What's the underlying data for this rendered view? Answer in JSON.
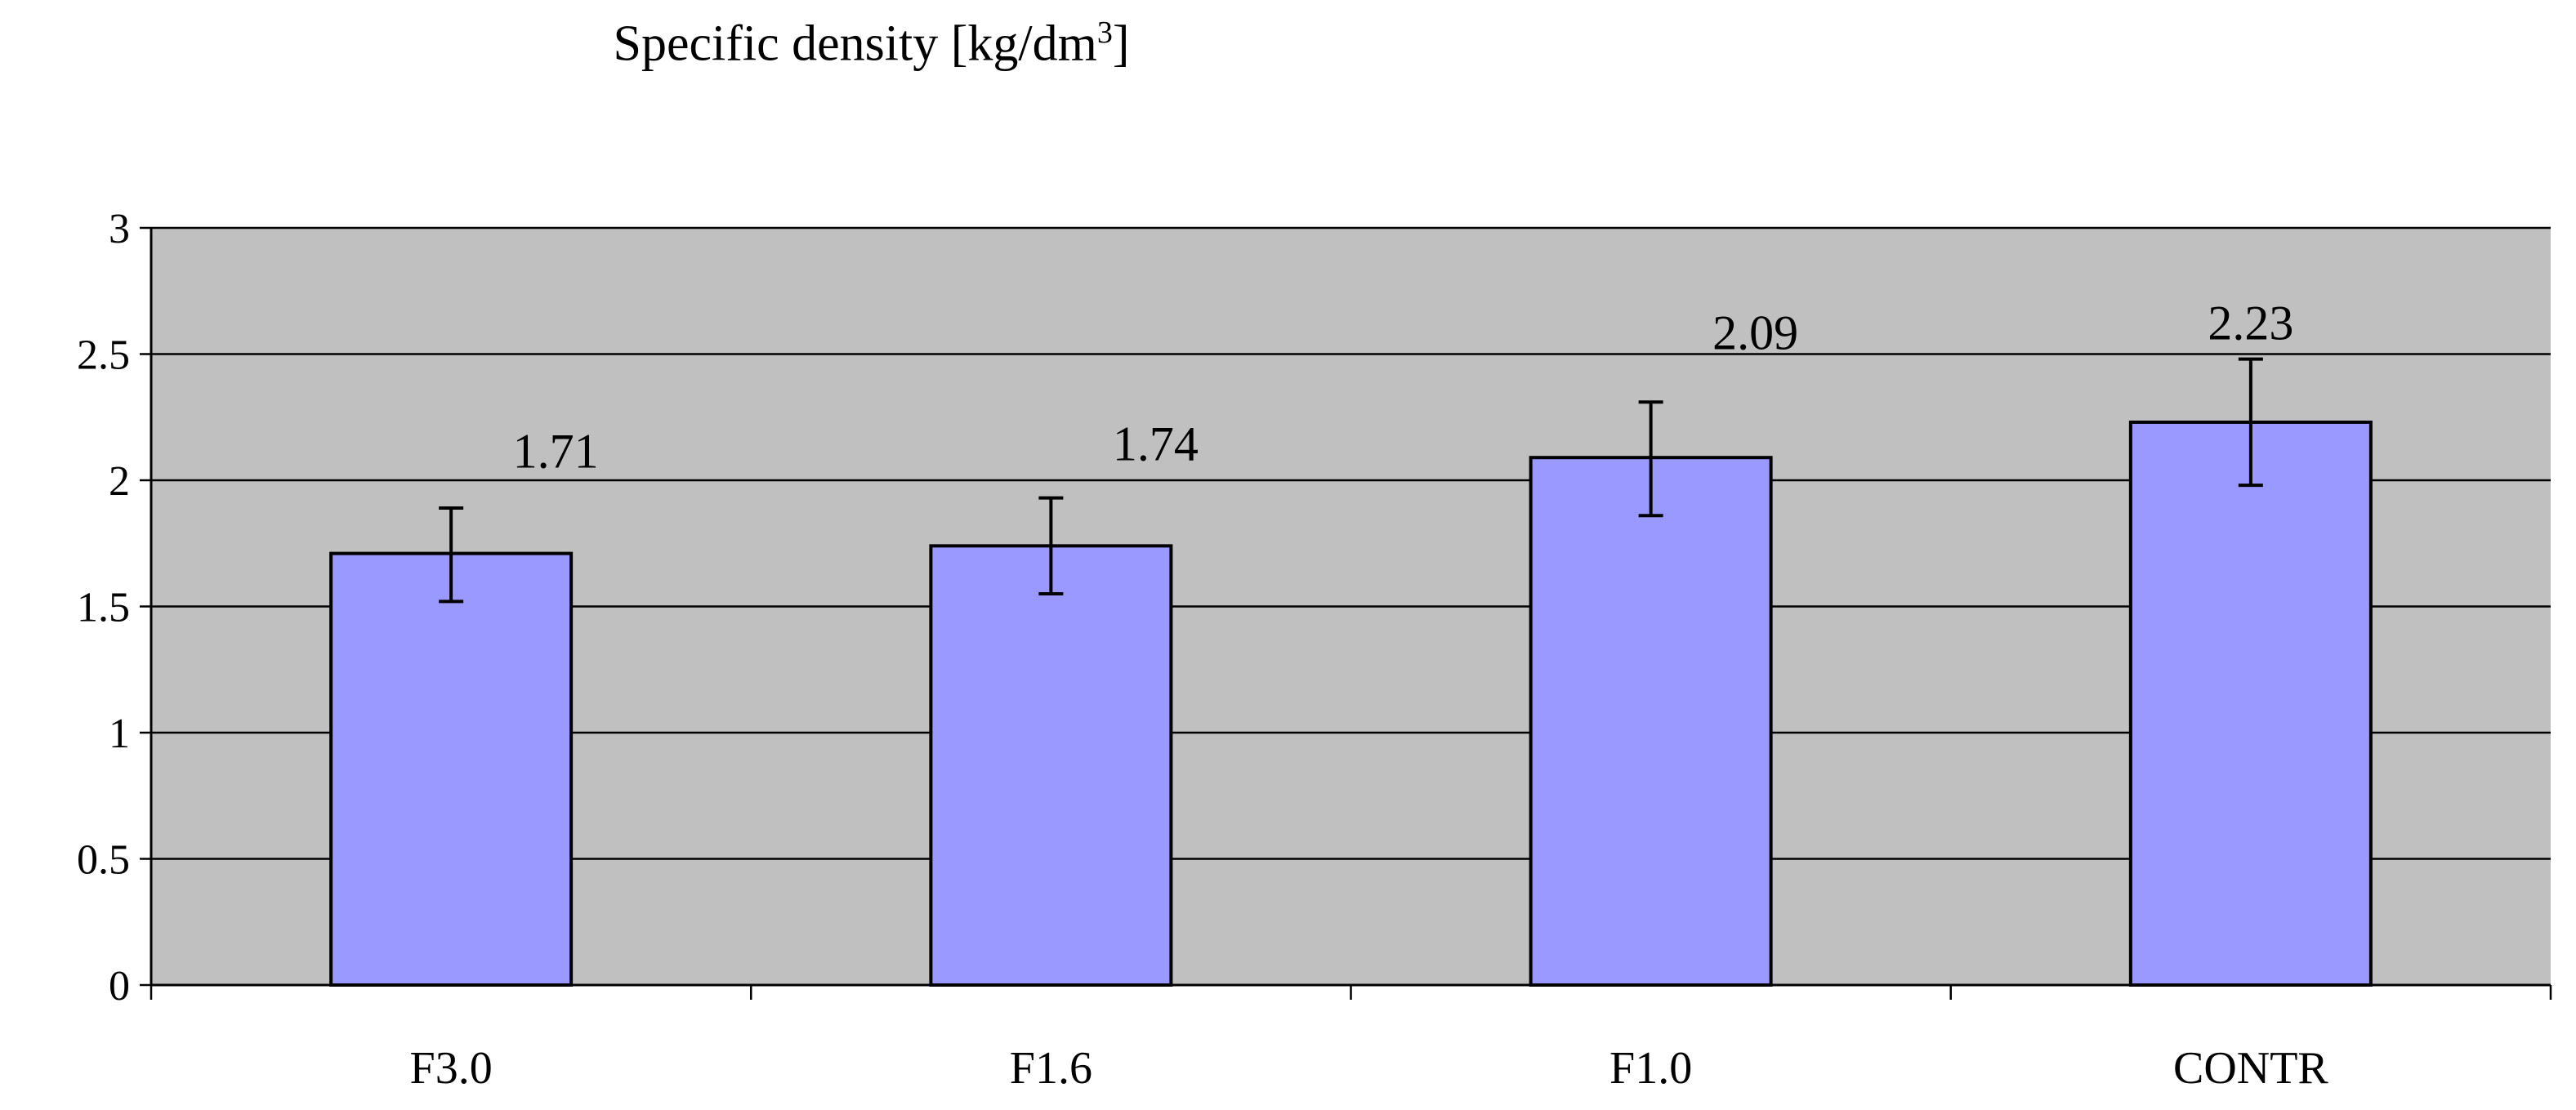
{
  "chart_data": {
    "type": "bar",
    "title": {
      "main": "Specific density [kg/dm",
      "superscript": "3",
      "suffix": "]"
    },
    "categories": [
      "F3.0",
      "F1.6",
      "F1.0",
      "CONTR"
    ],
    "series": [
      {
        "values": [
          1.71,
          1.74,
          2.09,
          2.23
        ],
        "error_low": [
          1.52,
          1.55,
          1.86,
          1.98
        ],
        "error_high": [
          1.89,
          1.93,
          2.31,
          2.48
        ],
        "data_labels": [
          "1.71",
          "1.74",
          "2.09",
          "2.23"
        ]
      }
    ],
    "ylim": [
      0,
      3
    ],
    "yticks": [
      "0",
      "0.5",
      "1",
      "1.5",
      "2",
      "2.5",
      "3"
    ],
    "xlabel": "",
    "ylabel": "",
    "grid": "horizontal",
    "legend": "none",
    "colors": {
      "bar_fill": "#9999ff",
      "plot_background": "#c0c0c0",
      "bar_stroke": "#000000"
    }
  }
}
